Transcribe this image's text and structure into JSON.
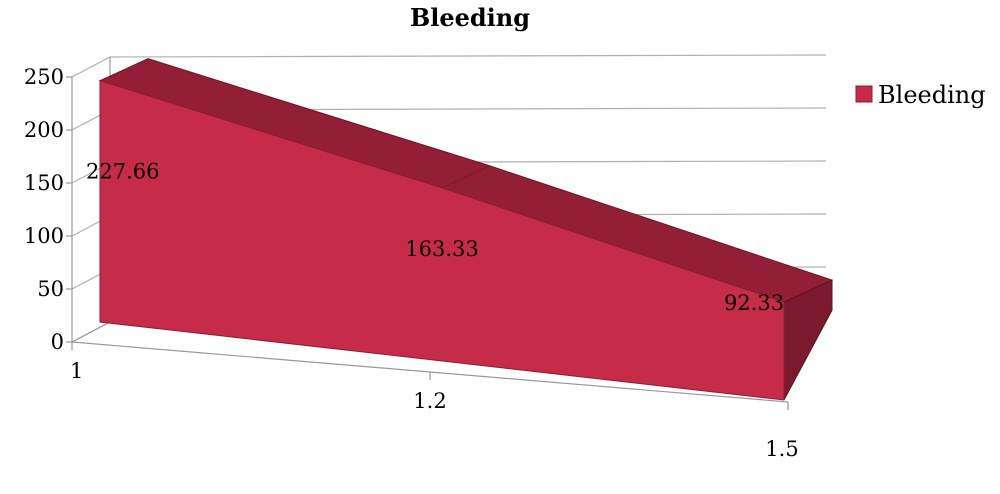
{
  "chart_data": {
    "type": "area",
    "title": "Bleeding",
    "categories": [
      "1",
      "1.2",
      "1.5"
    ],
    "series": [
      {
        "name": "Bleeding",
        "values": [
          227.66,
          163.33,
          92.33
        ],
        "color": "#C62B47"
      }
    ],
    "data_labels": [
      "227.66",
      "163.33",
      "92.33"
    ],
    "y_ticks": [
      "0",
      "50",
      "100",
      "150",
      "200",
      "250"
    ],
    "ylim": [
      0,
      250
    ],
    "legend": "right",
    "grid": true,
    "style": "3d",
    "colors": {
      "front": "#C62B47",
      "top": "#921F35",
      "side": "#7A1A2C"
    }
  }
}
